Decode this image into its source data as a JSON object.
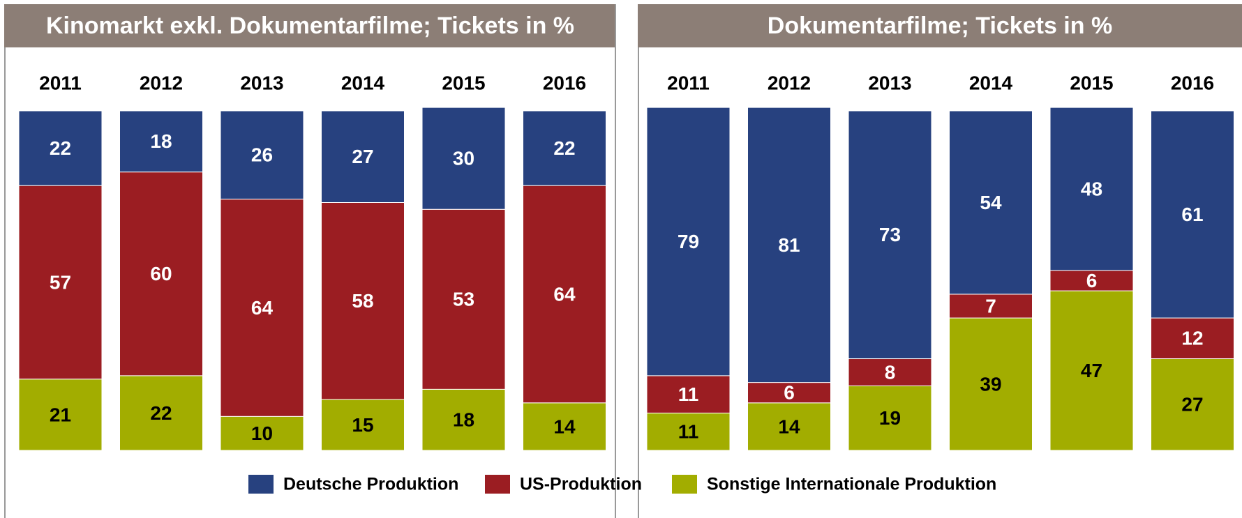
{
  "chart_data": [
    {
      "type": "stacked-bar",
      "title": "Kinomarkt exkl. Dokumentarfilme; Tickets in %",
      "categories": [
        "2011",
        "2012",
        "2013",
        "2014",
        "2015",
        "2016"
      ],
      "ylim": [
        0,
        100
      ],
      "series": [
        {
          "name": "Sonstige Internationale Produktion",
          "color": "#a2ad00",
          "values": [
            21,
            22,
            10,
            15,
            18,
            14
          ]
        },
        {
          "name": "US-Produktion",
          "color": "#9b1d22",
          "values": [
            57,
            60,
            64,
            58,
            53,
            64
          ]
        },
        {
          "name": "Deutsche Produktion",
          "color": "#27417f",
          "values": [
            22,
            18,
            26,
            27,
            30,
            22
          ]
        }
      ]
    },
    {
      "type": "stacked-bar",
      "title": "Dokumentarfilme; Tickets in %",
      "categories": [
        "2011",
        "2012",
        "2013",
        "2014",
        "2015",
        "2016"
      ],
      "ylim": [
        0,
        100
      ],
      "series": [
        {
          "name": "Sonstige Internationale Produktion",
          "color": "#a2ad00",
          "values": [
            11,
            14,
            19,
            39,
            47,
            27
          ]
        },
        {
          "name": "US-Produktion",
          "color": "#9b1d22",
          "values": [
            11,
            6,
            8,
            7,
            6,
            12
          ]
        },
        {
          "name": "Deutsche Produktion",
          "color": "#27417f",
          "values": [
            79,
            81,
            73,
            54,
            48,
            61
          ]
        }
      ]
    }
  ]
}
